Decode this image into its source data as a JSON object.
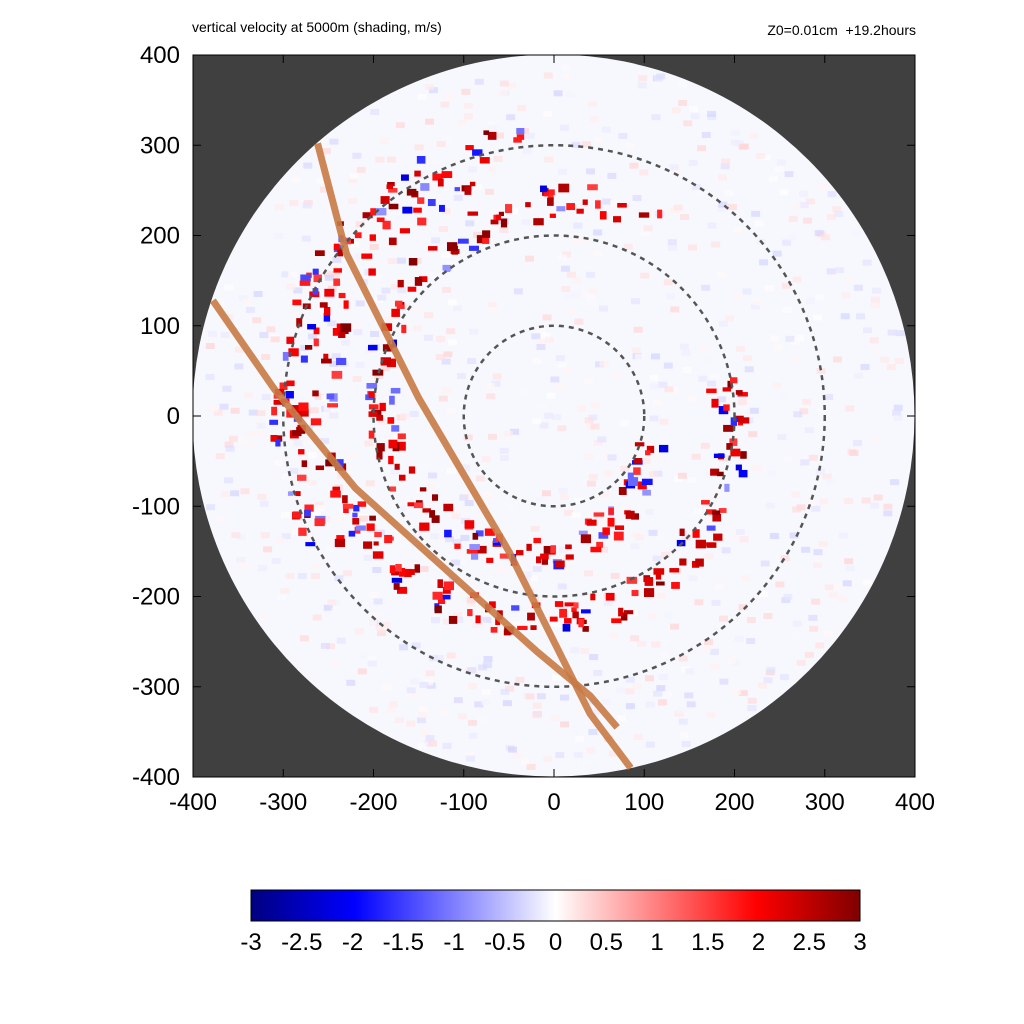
{
  "chart_data": {
    "type": "heatmap",
    "title": "vertical velocity at 5000m (shading, m/s)",
    "subtitle": "Z0=0.01cm  +19.2hours",
    "xlim": [
      -400,
      400
    ],
    "ylim": [
      -400,
      400
    ],
    "x_ticks": [
      "-400",
      "-300",
      "-200",
      "-100",
      "0",
      "100",
      "200",
      "300",
      "400"
    ],
    "y_ticks": [
      "400",
      "300",
      "200",
      "100",
      "0",
      "-100",
      "-200",
      "-300",
      "-400"
    ],
    "domain_radius": 400,
    "outside_domain_color": "#404040",
    "range_rings": [
      100,
      200,
      300
    ],
    "track_lines": [
      {
        "points": [
          [
            -262,
            302
          ],
          [
            -230,
            180
          ],
          [
            -150,
            20
          ],
          [
            -50,
            -150
          ],
          [
            40,
            -330
          ],
          [
            85,
            -390
          ]
        ]
      },
      {
        "points": [
          [
            -378,
            128
          ],
          [
            -310,
            30
          ],
          [
            -220,
            -80
          ],
          [
            -120,
            -170
          ],
          [
            -20,
            -260
          ],
          [
            40,
            -310
          ],
          [
            70,
            -345
          ]
        ]
      }
    ],
    "colorbar": {
      "min": -3,
      "max": 3,
      "tick_labels": [
        "-3",
        "-2.5",
        "-2",
        "-1.5",
        "-1",
        "-0.5",
        "0",
        "0.5",
        "1",
        "1.5",
        "2",
        "2.5",
        "3"
      ]
    },
    "colors": {
      "negative_strong": "#000080",
      "negative": "#0000ff",
      "zero": "#ffffff",
      "positive": "#ff0000",
      "positive_strong": "#800000",
      "track": "#c87a45",
      "ring": "#555555"
    }
  }
}
